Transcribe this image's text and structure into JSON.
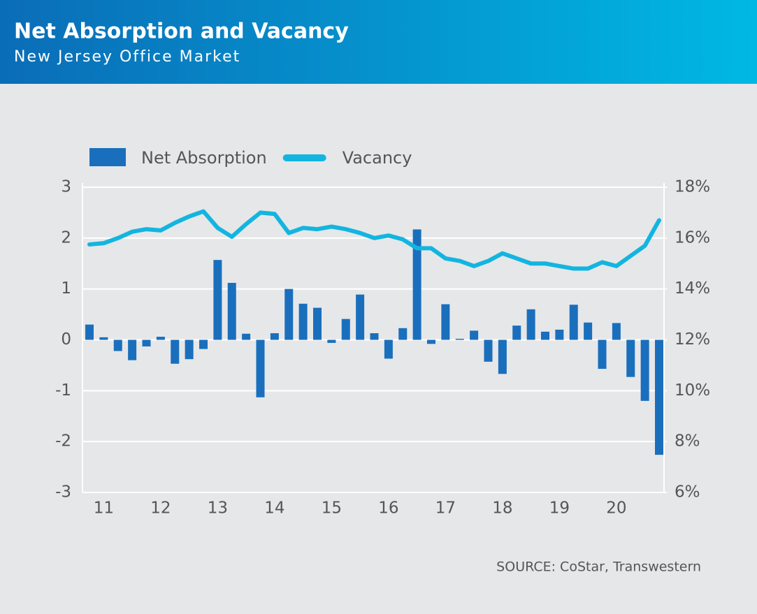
{
  "chart_data": {
    "type": "bar-line",
    "title": "Net Absorption and Vacancy",
    "subtitle": "New Jersey Office Market",
    "source": "SOURCE: CoStar, Transwestern",
    "categories": [
      null,
      "11",
      null,
      null,
      null,
      "12",
      null,
      null,
      null,
      "13",
      null,
      null,
      null,
      "14",
      null,
      null,
      null,
      "15",
      null,
      null,
      null,
      "16",
      null,
      null,
      null,
      "17",
      null,
      null,
      null,
      "18",
      null,
      null,
      null,
      "19",
      null,
      null,
      null,
      "20",
      null,
      null,
      null
    ],
    "series": [
      {
        "name": "Net Absorption",
        "type": "bar",
        "color": "#1a6fbd",
        "axis": "y",
        "values": [
          0.3,
          0.05,
          -0.22,
          -0.4,
          -0.13,
          0.06,
          -0.47,
          -0.38,
          -0.18,
          1.57,
          1.12,
          0.12,
          -1.13,
          0.13,
          1.0,
          0.71,
          0.63,
          -0.06,
          0.41,
          0.89,
          0.13,
          -0.37,
          0.23,
          2.17,
          -0.08,
          0.7,
          0.02,
          0.18,
          -0.43,
          -0.67,
          0.28,
          0.6,
          0.16,
          0.2,
          0.69,
          0.34,
          -0.57,
          0.33,
          -0.73,
          -1.2,
          -2.26
        ]
      },
      {
        "name": "Vacancy",
        "type": "line",
        "color": "#13b5e0",
        "axis": "y2",
        "values": [
          15.75,
          15.8,
          16.0,
          16.25,
          16.35,
          16.3,
          16.6,
          16.85,
          17.05,
          16.4,
          16.05,
          16.55,
          17.0,
          16.95,
          16.2,
          16.4,
          16.35,
          16.45,
          16.35,
          16.2,
          16.0,
          16.1,
          15.95,
          15.6,
          15.6,
          15.2,
          15.1,
          14.9,
          15.1,
          15.4,
          15.2,
          15.0,
          15.0,
          14.9,
          14.8,
          14.8,
          15.05,
          14.9,
          15.3,
          15.7,
          16.7
        ]
      }
    ],
    "ylim": [
      -3,
      3
    ],
    "yticks": [
      -3,
      -2,
      -1,
      0,
      1,
      2,
      3
    ],
    "y2lim": [
      6,
      18
    ],
    "y2ticks": [
      {
        "value": 6,
        "label": "6%"
      },
      {
        "value": 8,
        "label": "8%"
      },
      {
        "value": 10,
        "label": "10%"
      },
      {
        "value": 12,
        "label": "12%"
      },
      {
        "value": 14,
        "label": "14%"
      },
      {
        "value": 16,
        "label": "16%"
      },
      {
        "value": 18,
        "label": "18%"
      }
    ],
    "grid": true,
    "legend": "top-left"
  }
}
